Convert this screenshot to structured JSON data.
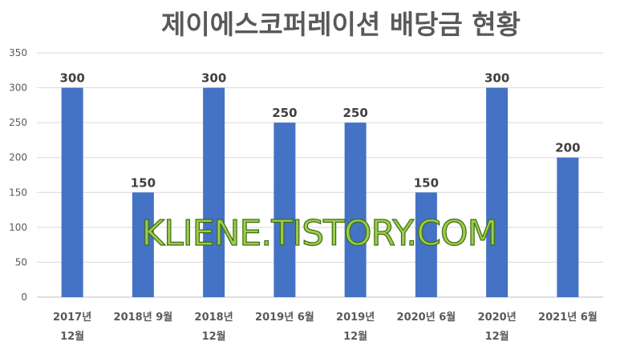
{
  "chart_data": {
    "type": "bar",
    "title": "제이에스코퍼레이션  배당금 현황",
    "xlabel": "",
    "ylabel": "",
    "ylim": [
      0,
      350
    ],
    "yticks": [
      0,
      50,
      100,
      150,
      200,
      250,
      300,
      350
    ],
    "grid": true,
    "legend": "none",
    "bar_color": "#4472c4",
    "categories": [
      [
        "2017년",
        "12월"
      ],
      [
        "2018년 9월"
      ],
      [
        "2018년",
        "12월"
      ],
      [
        "2019년 6월"
      ],
      [
        "2019년",
        "12월"
      ],
      [
        "2020년 6월"
      ],
      [
        "2020년",
        "12월"
      ],
      [
        "2021년 6월"
      ]
    ],
    "values": [
      300,
      150,
      300,
      250,
      250,
      150,
      300,
      200
    ]
  },
  "watermark": "KLIENE.TISTORY.COM"
}
